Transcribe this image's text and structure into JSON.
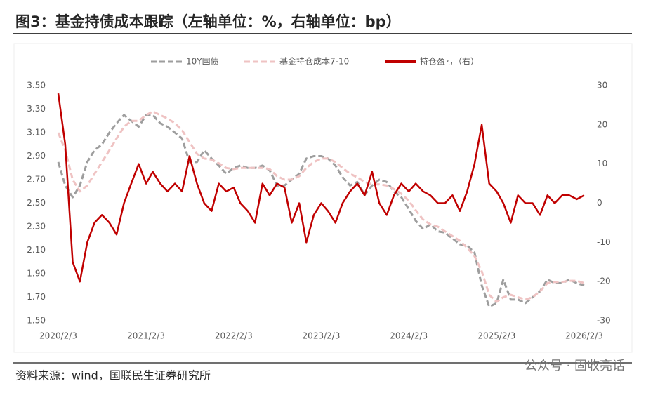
{
  "header": {
    "title": "图3：基金持债成本跟踪（左轴单位：%，右轴单位：bp）"
  },
  "chart_data": {
    "type": "line",
    "x": [
      "2020/2/3",
      "2020/3/3",
      "2020/4/3",
      "2020/5/3",
      "2020/6/3",
      "2020/7/3",
      "2020/8/3",
      "2020/9/3",
      "2020/10/3",
      "2020/11/3",
      "2020/12/3",
      "2021/1/3",
      "2021/2/3",
      "2021/3/3",
      "2021/4/3",
      "2021/5/3",
      "2021/6/3",
      "2021/7/3",
      "2021/8/3",
      "2021/9/3",
      "2021/10/3",
      "2021/11/3",
      "2021/12/3",
      "2022/1/3",
      "2022/2/3",
      "2022/3/3",
      "2022/4/3",
      "2022/5/3",
      "2022/6/3",
      "2022/7/3",
      "2022/8/3",
      "2022/9/3",
      "2022/10/3",
      "2022/11/3",
      "2022/12/3",
      "2023/1/3",
      "2023/2/3",
      "2023/3/3",
      "2023/4/3",
      "2023/5/3",
      "2023/6/3",
      "2023/7/3",
      "2023/8/3",
      "2023/9/3",
      "2023/10/3",
      "2023/11/3",
      "2023/12/3",
      "2024/1/3",
      "2024/2/3",
      "2024/3/3",
      "2024/4/3",
      "2024/5/3",
      "2024/6/3",
      "2024/7/3",
      "2024/8/3",
      "2024/9/3",
      "2024/10/3",
      "2024/11/3",
      "2024/12/3",
      "2025/1/3",
      "2025/2/3",
      "2025/3/3",
      "2025/4/3",
      "2025/5/3",
      "2025/6/3",
      "2025/7/3",
      "2025/8/3",
      "2025/9/3",
      "2025/10/3",
      "2025/11/3",
      "2025/12/3",
      "2026/1/3",
      "2026/2/3"
    ],
    "xlim": [
      "2020/2/3",
      "2026/2/3"
    ],
    "xticks": [
      "2020/2/3",
      "2021/2/3",
      "2022/2/3",
      "2023/2/3",
      "2024/2/3",
      "2025/2/3",
      "2026/2/3"
    ],
    "ylim": [
      1.5,
      3.5
    ],
    "yticks": [
      {
        "value": 1.5,
        "label": "1.50"
      },
      {
        "value": 1.7,
        "label": "1.70"
      },
      {
        "value": 1.9,
        "label": "1.90"
      },
      {
        "value": 2.1,
        "label": "2.10"
      },
      {
        "value": 2.3,
        "label": "2.30"
      },
      {
        "value": 2.5,
        "label": "2.50"
      },
      {
        "value": 2.7,
        "label": "2.70"
      },
      {
        "value": 2.9,
        "label": "2.90"
      },
      {
        "value": 3.1,
        "label": "3.10"
      },
      {
        "value": 3.3,
        "label": "3.30"
      },
      {
        "value": 3.5,
        "label": "3.50"
      }
    ],
    "y2lim": [
      -30,
      30
    ],
    "y2ticks": [
      -30,
      -20,
      -10,
      0,
      10,
      20,
      30
    ],
    "legend": "top",
    "series": [
      {
        "name": "10Y国债",
        "color": "#9e9e9e",
        "dash": true,
        "values": [
          2.85,
          2.65,
          2.55,
          2.65,
          2.85,
          2.95,
          3.0,
          3.1,
          3.18,
          3.25,
          3.2,
          3.15,
          3.25,
          3.25,
          3.18,
          3.15,
          3.1,
          3.05,
          2.85,
          2.85,
          2.95,
          2.88,
          2.82,
          2.75,
          2.8,
          2.82,
          2.8,
          2.8,
          2.82,
          2.78,
          2.65,
          2.65,
          2.7,
          2.75,
          2.88,
          2.9,
          2.9,
          2.88,
          2.82,
          2.72,
          2.65,
          2.68,
          2.57,
          2.65,
          2.7,
          2.68,
          2.6,
          2.55,
          2.45,
          2.35,
          2.28,
          2.32,
          2.26,
          2.25,
          2.2,
          2.15,
          2.14,
          2.08,
          1.8,
          1.62,
          1.65,
          1.85,
          1.68,
          1.68,
          1.65,
          1.7,
          1.75,
          1.85,
          1.82,
          1.82,
          1.85,
          1.82,
          1.8
        ]
      },
      {
        "name": "基金持仓成本7-10",
        "color": "#efc3c3",
        "dash": true,
        "values": [
          3.1,
          2.95,
          2.7,
          2.6,
          2.65,
          2.75,
          2.85,
          2.95,
          3.05,
          3.15,
          3.2,
          3.2,
          3.25,
          3.28,
          3.25,
          3.22,
          3.18,
          3.12,
          3.02,
          2.92,
          2.88,
          2.87,
          2.84,
          2.8,
          2.79,
          2.8,
          2.8,
          2.8,
          2.8,
          2.79,
          2.73,
          2.7,
          2.7,
          2.73,
          2.8,
          2.85,
          2.88,
          2.88,
          2.85,
          2.8,
          2.75,
          2.72,
          2.68,
          2.66,
          2.66,
          2.65,
          2.62,
          2.58,
          2.52,
          2.44,
          2.36,
          2.32,
          2.3,
          2.26,
          2.22,
          2.18,
          2.12,
          2.05,
          1.92,
          1.72,
          1.66,
          1.7,
          1.72,
          1.7,
          1.68,
          1.7,
          1.75,
          1.82,
          1.83,
          1.83,
          1.84,
          1.84,
          1.82
        ]
      },
      {
        "name": "持仓盈亏（右）",
        "color": "#c00000",
        "dash": false,
        "axis": "y2",
        "values": [
          28,
          15,
          -15,
          -20,
          -10,
          -5,
          -3,
          -5,
          -8,
          0,
          5,
          10,
          5,
          8,
          5,
          3,
          5,
          3,
          12,
          5,
          0,
          -2,
          5,
          3,
          4,
          0,
          -2,
          -5,
          5,
          2,
          5,
          4,
          -5,
          0,
          -10,
          -3,
          0,
          -2,
          -5,
          0,
          3,
          5,
          2,
          8,
          0,
          -3,
          2,
          5,
          3,
          5,
          3,
          2,
          0,
          0,
          2,
          -2,
          3,
          10,
          20,
          5,
          3,
          0,
          -5,
          2,
          0,
          0,
          -3,
          2,
          0,
          2,
          2,
          1,
          2
        ]
      }
    ]
  },
  "footer": {
    "source": "资料来源：wind，国联民生证券研究所",
    "watermark": "公众号 · 固收亮话"
  }
}
